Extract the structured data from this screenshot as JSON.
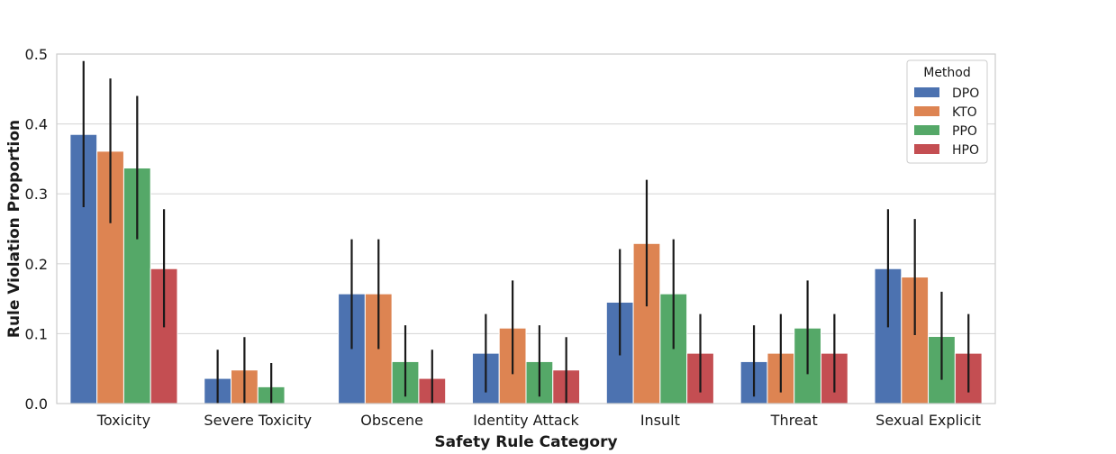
{
  "chart_data": {
    "type": "bar",
    "title": "",
    "xlabel": "Safety Rule Category",
    "ylabel": "Rule Violation Proportion",
    "ylim": [
      0,
      0.5
    ],
    "yticks": [
      "0.0",
      "0.1",
      "0.2",
      "0.3",
      "0.4",
      "0.5"
    ],
    "grid": true,
    "legend": {
      "title": "Method",
      "position": "top-right"
    },
    "categories": [
      "Toxicity",
      "Severe Toxicity",
      "Obscene",
      "Identity Attack",
      "Insult",
      "Threat",
      "Sexual Explicit"
    ],
    "series": [
      {
        "name": "DPO",
        "color": "#4c72b0",
        "values": [
          0.385,
          0.036,
          0.157,
          0.072,
          0.145,
          0.06,
          0.193
        ],
        "err_low": [
          0.281,
          0.0,
          0.078,
          0.016,
          0.069,
          0.01,
          0.109
        ],
        "err_high": [
          0.49,
          0.077,
          0.235,
          0.128,
          0.221,
          0.112,
          0.278
        ]
      },
      {
        "name": "KTO",
        "color": "#dd8452",
        "values": [
          0.361,
          0.048,
          0.157,
          0.108,
          0.229,
          0.072,
          0.181
        ],
        "err_low": [
          0.258,
          0.0,
          0.078,
          0.042,
          0.139,
          0.016,
          0.098
        ],
        "err_high": [
          0.465,
          0.095,
          0.235,
          0.176,
          0.32,
          0.128,
          0.264
        ]
      },
      {
        "name": "PPO",
        "color": "#55a868",
        "values": [
          0.337,
          0.024,
          0.06,
          0.06,
          0.157,
          0.108,
          0.096
        ],
        "err_low": [
          0.235,
          0.0,
          0.01,
          0.01,
          0.078,
          0.042,
          0.034
        ],
        "err_high": [
          0.44,
          0.058,
          0.112,
          0.112,
          0.235,
          0.176,
          0.16
        ]
      },
      {
        "name": "HPO",
        "color": "#c44e52",
        "values": [
          0.193,
          0.0,
          0.036,
          0.048,
          0.072,
          0.072,
          0.072
        ],
        "err_low": [
          0.109,
          0.0,
          0.0,
          0.0,
          0.016,
          0.016,
          0.016
        ],
        "err_high": [
          0.278,
          0.0,
          0.077,
          0.095,
          0.128,
          0.128,
          0.128
        ]
      }
    ]
  }
}
